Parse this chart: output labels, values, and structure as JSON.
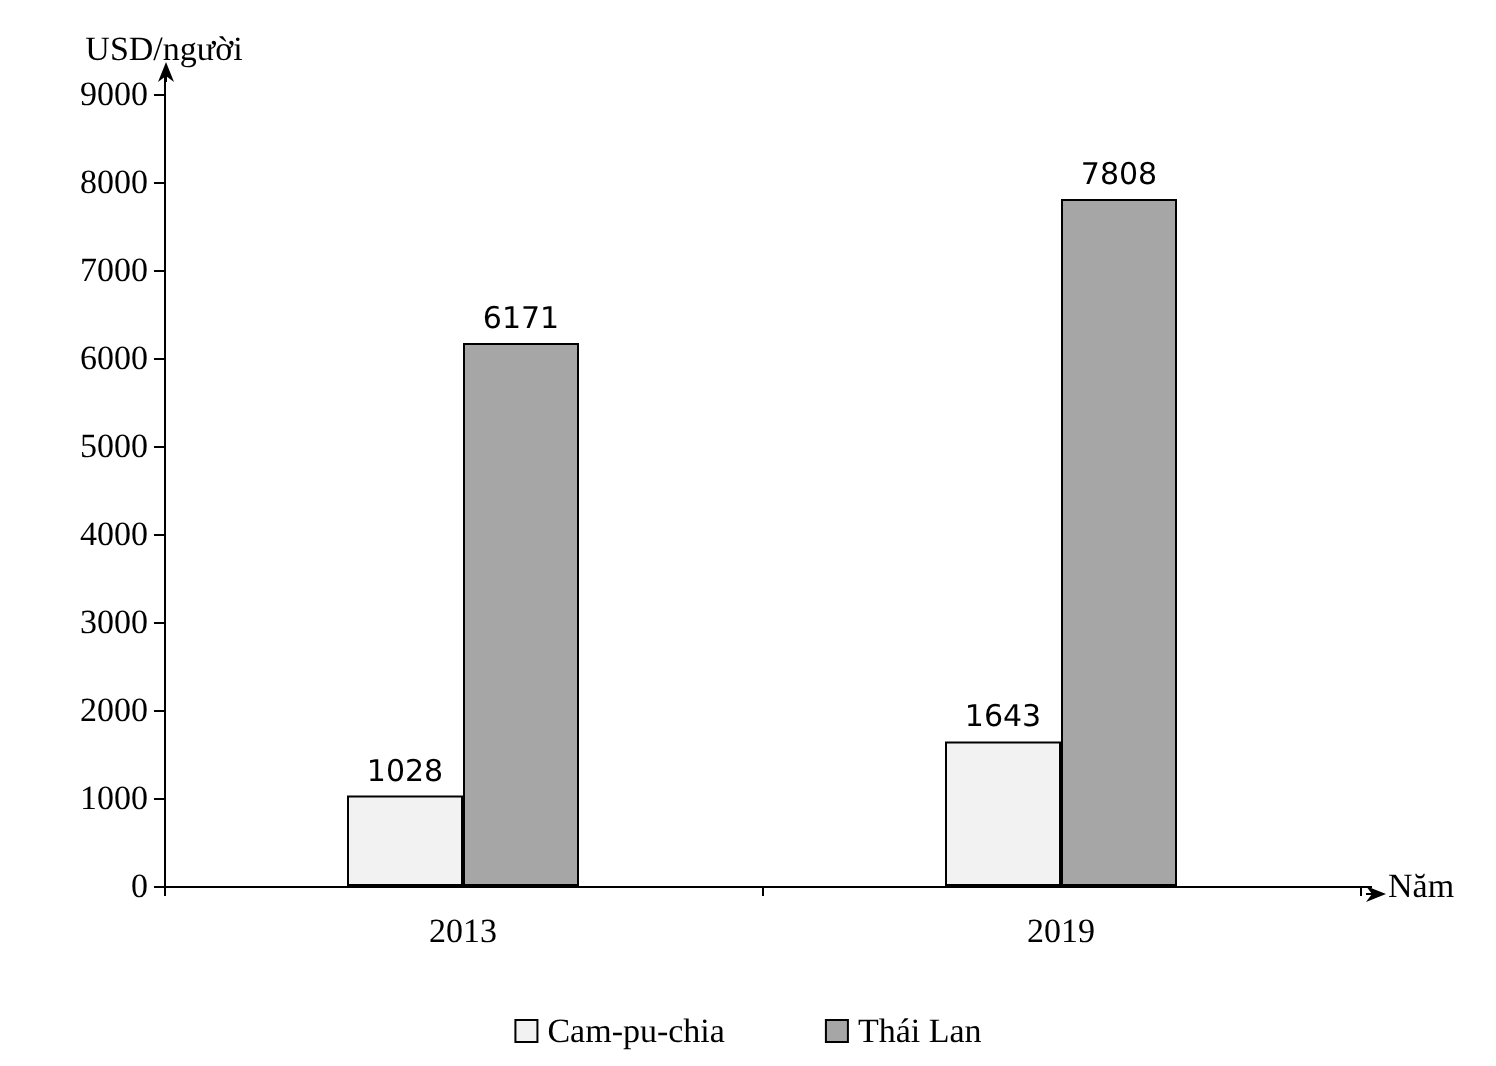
{
  "chart_data": {
    "type": "bar",
    "xlabel": "Năm",
    "ylabel": "USD/người",
    "categories": [
      "2013",
      "2019"
    ],
    "series": [
      {
        "name": "Cam-pu-chia",
        "color": "#f2f2f2",
        "values": [
          1028,
          1643
        ]
      },
      {
        "name": "Thái Lan",
        "color": "#a6a6a6",
        "values": [
          6171,
          7808
        ]
      }
    ],
    "ylim": [
      0,
      9000
    ],
    "yticks": [
      0,
      1000,
      2000,
      3000,
      4000,
      5000,
      6000,
      7000,
      8000,
      9000
    ],
    "data_labels": true,
    "grid": false,
    "legend": "bottom"
  }
}
